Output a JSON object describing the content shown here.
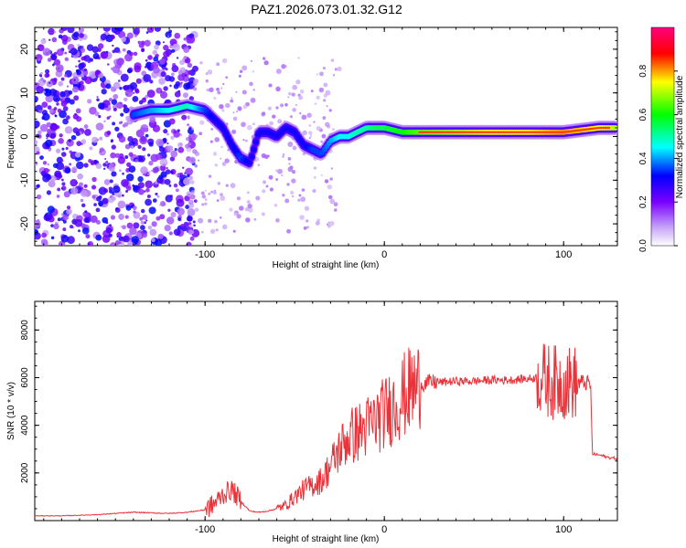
{
  "title": "PAZ1.2026.073.01.32.G12",
  "chart_data": [
    {
      "type": "heatmap",
      "xlabel": "Height of straight line (km)",
      "ylabel": "Frequency (Hz)",
      "xlim": [
        -195,
        130
      ],
      "ylim": [
        -25,
        25
      ],
      "xticks": [
        -100,
        0,
        100
      ],
      "xtick_labels": [
        "-100",
        "0",
        "100"
      ],
      "yticks": [
        -20,
        -10,
        0,
        10,
        20
      ],
      "ytick_labels": [
        "-20",
        "-10",
        "0",
        "10",
        "20"
      ],
      "colorbar": {
        "label": "Normalized spectral amplitude",
        "range": [
          0,
          1
        ],
        "ticks": [
          0.0,
          0.2,
          0.4,
          0.6,
          0.8
        ],
        "tick_labels": [
          "0.0",
          "0.2",
          "0.4",
          "0.6",
          "0.8"
        ]
      },
      "ridge": {
        "x": [
          -140,
          -130,
          -120,
          -110,
          -100,
          -95,
          -90,
          -85,
          -80,
          -75,
          -70,
          -65,
          -60,
          -55,
          -50,
          -45,
          -40,
          -35,
          -30,
          -25,
          -20,
          -15,
          -10,
          -5,
          0,
          10,
          20,
          40,
          60,
          80,
          100,
          120,
          130
        ],
        "y": [
          5,
          6,
          6,
          7,
          6,
          4,
          2,
          -2,
          -5,
          -6,
          1,
          1,
          0,
          2,
          1,
          -2,
          -3,
          -4,
          -1,
          0,
          0,
          1,
          2,
          2,
          2,
          1,
          1,
          1,
          1,
          1,
          1,
          2,
          2
        ],
        "amplitude": [
          0.35,
          0.4,
          0.45,
          0.5,
          0.35,
          0.3,
          0.3,
          0.3,
          0.35,
          0.3,
          0.3,
          0.3,
          0.3,
          0.3,
          0.3,
          0.3,
          0.35,
          0.35,
          0.4,
          0.45,
          0.45,
          0.5,
          0.5,
          0.55,
          0.55,
          0.6,
          0.65,
          0.7,
          0.75,
          0.75,
          0.8,
          0.75,
          0.7
        ]
      }
    },
    {
      "type": "line",
      "xlabel": "Height of straight line (km)",
      "ylabel": "SNR (10 * v/v)",
      "xlim": [
        -195,
        130
      ],
      "ylim": [
        0,
        9200
      ],
      "xticks": [
        -100,
        0,
        100
      ],
      "xtick_labels": [
        "-100",
        "0",
        "100"
      ],
      "yticks": [
        2000,
        4000,
        6000,
        8000
      ],
      "ytick_labels": [
        "2000",
        "4000",
        "6000",
        "8000"
      ],
      "series": [
        {
          "name": "SNR",
          "color": "#e8333a",
          "x": [
            -195,
            -180,
            -160,
            -140,
            -120,
            -110,
            -100,
            -95,
            -90,
            -85,
            -80,
            -75,
            -70,
            -65,
            -60,
            -55,
            -50,
            -45,
            -40,
            -35,
            -30,
            -25,
            -20,
            -15,
            -10,
            -5,
            0,
            5,
            10,
            15,
            20,
            25,
            30,
            40,
            50,
            60,
            70,
            80,
            85,
            90,
            95,
            100,
            105,
            110,
            115,
            116,
            120,
            125,
            130
          ],
          "y": [
            200,
            200,
            250,
            350,
            300,
            350,
            450,
            700,
            1100,
            1300,
            800,
            400,
            350,
            400,
            500,
            650,
            1000,
            1300,
            1500,
            1700,
            2300,
            3000,
            3500,
            3700,
            3900,
            4200,
            4500,
            4800,
            5200,
            5500,
            5700,
            5800,
            5800,
            5850,
            5850,
            5900,
            5900,
            5950,
            6000,
            5900,
            5800,
            5800,
            5800,
            5800,
            5750,
            2800,
            2750,
            2650,
            2600
          ]
        }
      ]
    }
  ]
}
